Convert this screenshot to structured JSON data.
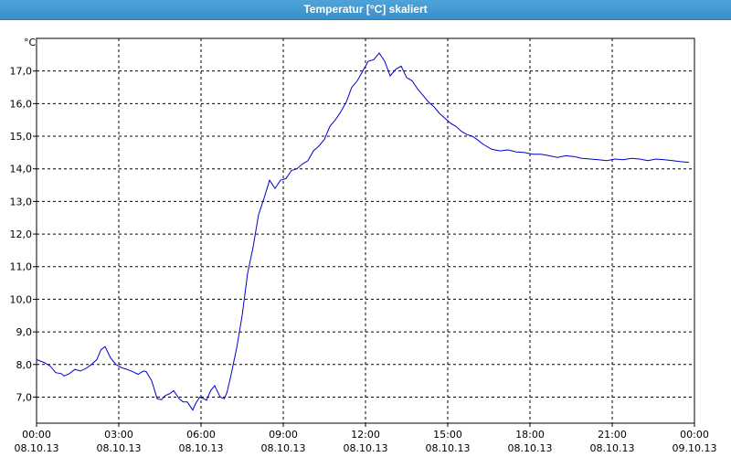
{
  "window": {
    "title": "Temperatur [°C] skaliert"
  },
  "chart_data": {
    "type": "line",
    "title": "Temperatur [°C] skaliert",
    "ylabel": "°C",
    "xlabel": "",
    "grid": true,
    "ylim": [
      6.2,
      18.0
    ],
    "xlim": [
      0,
      24
    ],
    "y_ticks": [
      "7,0",
      "8,0",
      "9,0",
      "10,0",
      "11,0",
      "12,0",
      "13,0",
      "14,0",
      "15,0",
      "16,0",
      "17,0"
    ],
    "y_tick_values": [
      7,
      8,
      9,
      10,
      11,
      12,
      13,
      14,
      15,
      16,
      17
    ],
    "x_ticks": [
      {
        "time": "00:00",
        "date": "08.10.13"
      },
      {
        "time": "03:00",
        "date": "08.10.13"
      },
      {
        "time": "06:00",
        "date": "08.10.13"
      },
      {
        "time": "09:00",
        "date": "08.10.13"
      },
      {
        "time": "12:00",
        "date": "08.10.13"
      },
      {
        "time": "15:00",
        "date": "08.10.13"
      },
      {
        "time": "18:00",
        "date": "08.10.13"
      },
      {
        "time": "21:00",
        "date": "08.10.13"
      },
      {
        "time": "00:00",
        "date": "09.10.13"
      }
    ],
    "line_color": "#0000cc",
    "series": [
      {
        "x": [
          0.0,
          0.3,
          0.5,
          0.7,
          0.9,
          1.0,
          1.2,
          1.4,
          1.6,
          1.8,
          2.0,
          2.2,
          2.35,
          2.5,
          2.7,
          2.9,
          3.1,
          3.3,
          3.5,
          3.7,
          3.9,
          4.0,
          4.2,
          4.4,
          4.55,
          4.7,
          4.85,
          5.0,
          5.2,
          5.35,
          5.5,
          5.7,
          5.8,
          5.95,
          6.1,
          6.2,
          6.35,
          6.5,
          6.7,
          6.85,
          6.95,
          7.1,
          7.3,
          7.5,
          7.7,
          7.9,
          8.1,
          8.3,
          8.5,
          8.7,
          8.9,
          9.1,
          9.3,
          9.5,
          9.7,
          9.9,
          10.1,
          10.3,
          10.5,
          10.7,
          10.9,
          11.1,
          11.3,
          11.5,
          11.7,
          11.9,
          12.1,
          12.3,
          12.5,
          12.7,
          12.9,
          13.1,
          13.3,
          13.5,
          13.7,
          13.9,
          14.1,
          14.3,
          14.5,
          14.7,
          14.9,
          15.1,
          15.3,
          15.5,
          15.7,
          15.9,
          16.1,
          16.3,
          16.6,
          16.9,
          17.2,
          17.5,
          17.8,
          18.1,
          18.4,
          18.7,
          19.0,
          19.3,
          19.6,
          19.9,
          20.2,
          20.5,
          20.8,
          21.1,
          21.4,
          21.7,
          22.0,
          22.3,
          22.6,
          22.9,
          23.2,
          23.5,
          23.8
        ],
        "y": [
          8.15,
          8.05,
          7.95,
          7.75,
          7.72,
          7.65,
          7.72,
          7.85,
          7.8,
          7.88,
          8.0,
          8.15,
          8.45,
          8.55,
          8.2,
          8.0,
          7.9,
          7.85,
          7.78,
          7.7,
          7.8,
          7.78,
          7.5,
          6.95,
          6.92,
          7.05,
          7.1,
          7.2,
          6.95,
          6.85,
          6.85,
          6.6,
          6.8,
          7.0,
          6.95,
          6.9,
          7.2,
          7.35,
          7.0,
          6.95,
          7.15,
          7.7,
          8.5,
          9.5,
          10.8,
          11.6,
          12.6,
          13.1,
          13.65,
          13.4,
          13.65,
          13.7,
          13.95,
          14.0,
          14.15,
          14.25,
          14.55,
          14.7,
          14.9,
          15.3,
          15.5,
          15.75,
          16.05,
          16.5,
          16.7,
          17.0,
          17.3,
          17.35,
          17.55,
          17.3,
          16.85,
          17.05,
          17.15,
          16.8,
          16.7,
          16.45,
          16.25,
          16.05,
          15.9,
          15.7,
          15.55,
          15.4,
          15.3,
          15.15,
          15.05,
          15.0,
          14.88,
          14.75,
          14.6,
          14.55,
          14.58,
          14.52,
          14.5,
          14.45,
          14.45,
          14.4,
          14.35,
          14.4,
          14.38,
          14.32,
          14.3,
          14.28,
          14.25,
          14.3,
          14.28,
          14.32,
          14.3,
          14.25,
          14.3,
          14.28,
          14.25,
          14.22,
          14.2
        ]
      }
    ]
  }
}
